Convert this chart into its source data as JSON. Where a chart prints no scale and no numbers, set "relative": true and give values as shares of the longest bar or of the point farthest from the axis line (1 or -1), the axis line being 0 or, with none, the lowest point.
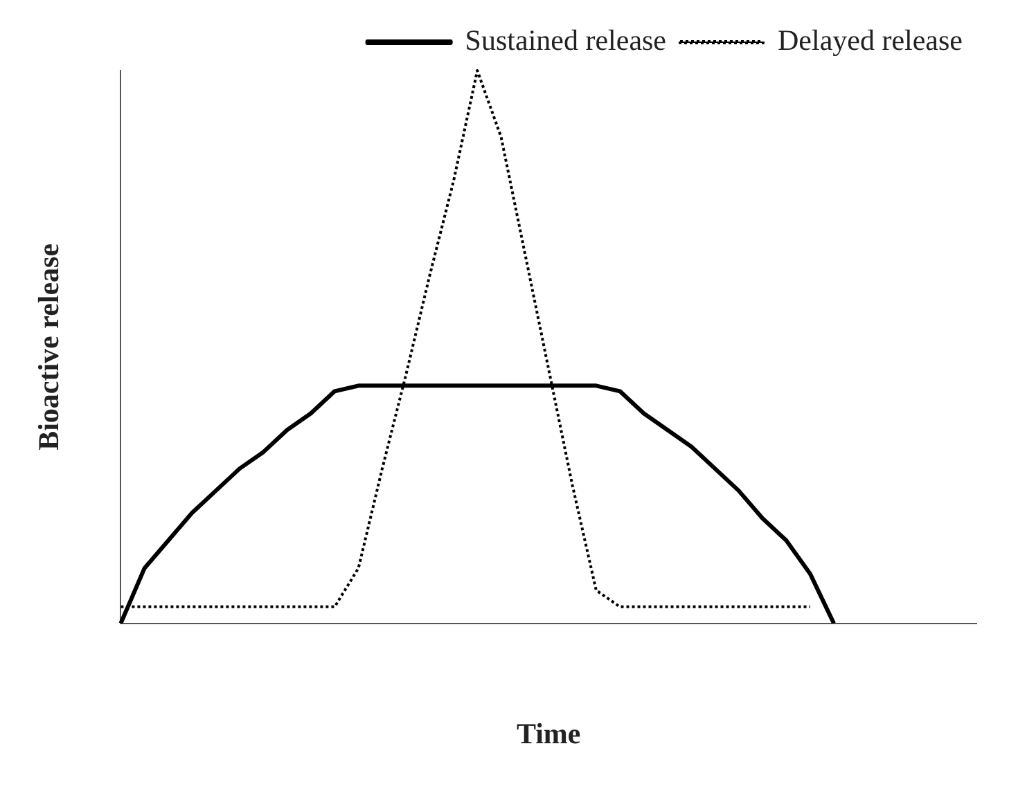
{
  "chart_data": {
    "type": "line",
    "relative": true,
    "xlabel": "Time",
    "ylabel": "Bioactive release",
    "legend": "top right",
    "marker": "none",
    "categories": [
      null,
      null,
      null,
      null,
      null,
      null,
      null,
      null,
      null,
      null,
      null,
      null,
      null,
      null,
      null,
      null,
      null,
      null,
      null,
      null,
      null,
      null,
      null,
      null,
      null,
      null,
      null,
      null,
      null,
      null,
      null,
      null,
      null,
      null,
      null,
      null,
      null
    ],
    "series": [
      {
        "name": "Sustained release",
        "color": "#000000",
        "line_style": "solid",
        "values": [
          0,
          0.1,
          0.15,
          0.2,
          0.24,
          0.28,
          0.31,
          0.35,
          0.38,
          0.42,
          0.43,
          0.43,
          0.43,
          0.43,
          0.43,
          0.43,
          0.43,
          0.43,
          0.43,
          0.43,
          0.43,
          0.42,
          0.38,
          0.35,
          0.32,
          0.28,
          0.24,
          0.19,
          0.15,
          0.09,
          0,
          null,
          null,
          null,
          null,
          null,
          null
        ]
      },
      {
        "name": "Delayed release",
        "color": "#000000",
        "line_style": "dotted",
        "values": [
          0.03,
          0.03,
          0.03,
          0.03,
          0.03,
          0.03,
          0.03,
          0.03,
          0.03,
          0.03,
          0.1,
          0.28,
          0.45,
          0.63,
          0.8,
          1,
          0.88,
          0.67,
          0.46,
          0.25,
          0.06,
          0.03,
          0.03,
          0.03,
          0.03,
          0.03,
          0.03,
          0.03,
          0.03,
          0.03,
          null,
          null,
          null,
          null,
          null,
          null,
          null
        ]
      }
    ]
  }
}
